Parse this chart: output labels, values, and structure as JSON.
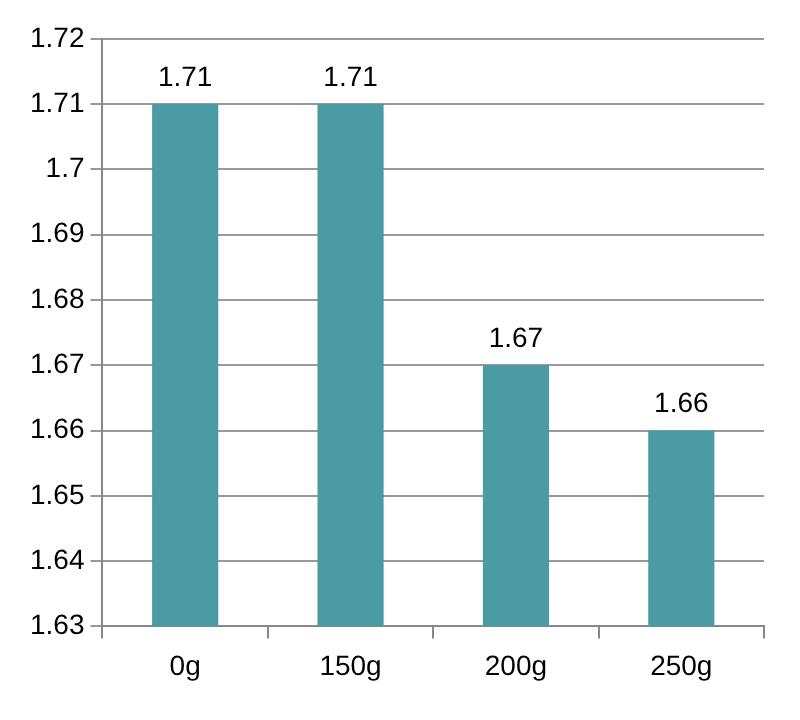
{
  "chart_data": {
    "type": "bar",
    "categories": [
      "0g",
      "150g",
      "200g",
      "250g"
    ],
    "values": [
      1.71,
      1.71,
      1.67,
      1.66
    ],
    "color": "#4a9ba4",
    "ylim": [
      1.63,
      1.72
    ],
    "yticks": [
      1.63,
      1.64,
      1.65,
      1.66,
      1.67,
      1.68,
      1.69,
      1.7,
      1.71,
      1.72
    ],
    "grid": "y",
    "data_labels": true,
    "legend": false
  }
}
